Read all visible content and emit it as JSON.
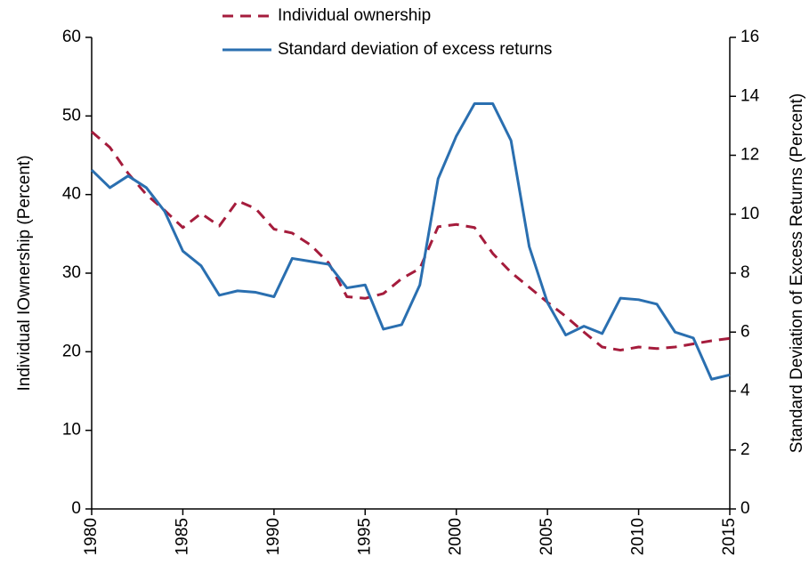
{
  "chart_data": {
    "type": "line",
    "y_label": "Individual IOwnership (Percent)",
    "y2_label": "Standard Deviation of Excess Returns (Percent)",
    "x": [
      1980,
      1981,
      1982,
      1983,
      1984,
      1985,
      1986,
      1987,
      1988,
      1989,
      1990,
      1991,
      1992,
      1993,
      1994,
      1995,
      1996,
      1997,
      1998,
      1999,
      2000,
      2001,
      2002,
      2003,
      2004,
      2005,
      2006,
      2007,
      2008,
      2009,
      2010,
      2011,
      2012,
      2013,
      2014,
      2015
    ],
    "xlim": [
      1980,
      2015
    ],
    "xticks": [
      1980,
      1985,
      1990,
      1995,
      2000,
      2005,
      2010,
      2015
    ],
    "ylim": [
      0,
      60
    ],
    "yticks": [
      0,
      10,
      20,
      30,
      40,
      50,
      60
    ],
    "y2lim": [
      0,
      16
    ],
    "y2ticks": [
      0,
      2,
      4,
      6,
      8,
      10,
      12,
      14,
      16
    ],
    "legend": "top",
    "series": [
      {
        "name": "Individual ownership",
        "color": "#a51c3c",
        "dashed": true,
        "values": [
          48,
          46,
          42.7,
          40,
          38,
          35.8,
          37.6,
          36,
          39.2,
          38.2,
          35.6,
          35.1,
          33.6,
          31.3,
          27,
          26.8,
          27.4,
          29.3,
          30.6,
          35.9,
          36.2,
          35.8,
          32.5,
          30.1,
          28.2,
          26.3,
          24.5,
          22.5,
          20.6,
          20.2,
          20.6,
          20.4,
          20.6,
          21,
          21.4,
          21.7
        ]
      },
      {
        "name": "Standard deviation of excess returns",
        "color": "#2a6fb0",
        "axis": "y2",
        "values": [
          11.5,
          10.9,
          11.3,
          10.9,
          10.1,
          8.75,
          8.25,
          7.25,
          7.4,
          7.35,
          7.2,
          8.5,
          8.4,
          8.3,
          7.5,
          7.6,
          6.1,
          6.25,
          7.6,
          11.2,
          12.65,
          13.75,
          13.75,
          12.5,
          8.9,
          7,
          5.9,
          6.2,
          5.95,
          7.15,
          7.1,
          6.95,
          6,
          5.8,
          4.4,
          4.55
        ]
      }
    ]
  }
}
